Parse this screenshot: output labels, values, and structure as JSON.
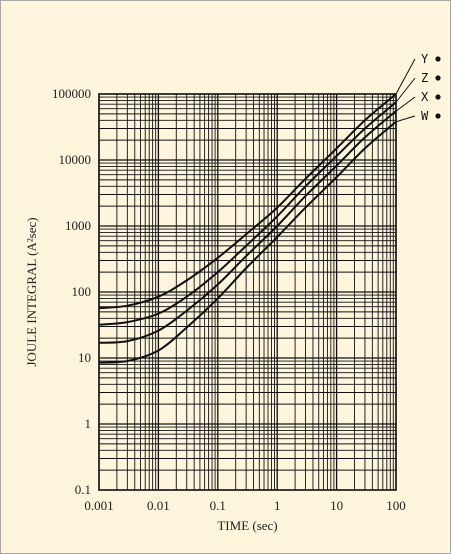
{
  "chart_data": {
    "type": "line",
    "title": "",
    "xlabel": "TIME (sec)",
    "ylabel": "JOULE INTEGRAL (A²sec)",
    "x_scale": "log",
    "y_scale": "log",
    "xlim": [
      0.001,
      100
    ],
    "ylim": [
      0.1,
      100000
    ],
    "grid": true,
    "legend_position": "top-right",
    "x_tick_labels": [
      "0.001",
      "0.01",
      "0.1",
      "1",
      "10",
      "100"
    ],
    "y_tick_labels": [
      "0.1",
      "1",
      "10",
      "100",
      "1000",
      "10000",
      "100000"
    ],
    "series": [
      {
        "name": "Y",
        "x": [
          0.001,
          0.003,
          0.01,
          0.03,
          0.1,
          0.3,
          1,
          3,
          10,
          30,
          100
        ],
        "values": [
          57,
          62,
          85,
          150,
          330,
          750,
          1900,
          5200,
          15000,
          40000,
          100000
        ]
      },
      {
        "name": "Z",
        "x": [
          0.001,
          0.003,
          0.01,
          0.03,
          0.1,
          0.3,
          1,
          3,
          10,
          30,
          100
        ],
        "values": [
          32,
          35,
          47,
          85,
          200,
          500,
          1400,
          4000,
          11500,
          30000,
          75000
        ]
      },
      {
        "name": "X",
        "x": [
          0.001,
          0.003,
          0.01,
          0.03,
          0.1,
          0.3,
          1,
          3,
          10,
          30,
          100
        ],
        "values": [
          17,
          18,
          26,
          52,
          130,
          350,
          1000,
          2850,
          8200,
          22000,
          55000
        ]
      },
      {
        "name": "W",
        "x": [
          0.001,
          0.003,
          0.01,
          0.03,
          0.1,
          0.3,
          1,
          3,
          10,
          30,
          100
        ],
        "values": [
          8.5,
          9,
          13,
          29,
          80,
          230,
          680,
          1900,
          5500,
          15000,
          38000
        ]
      }
    ]
  }
}
